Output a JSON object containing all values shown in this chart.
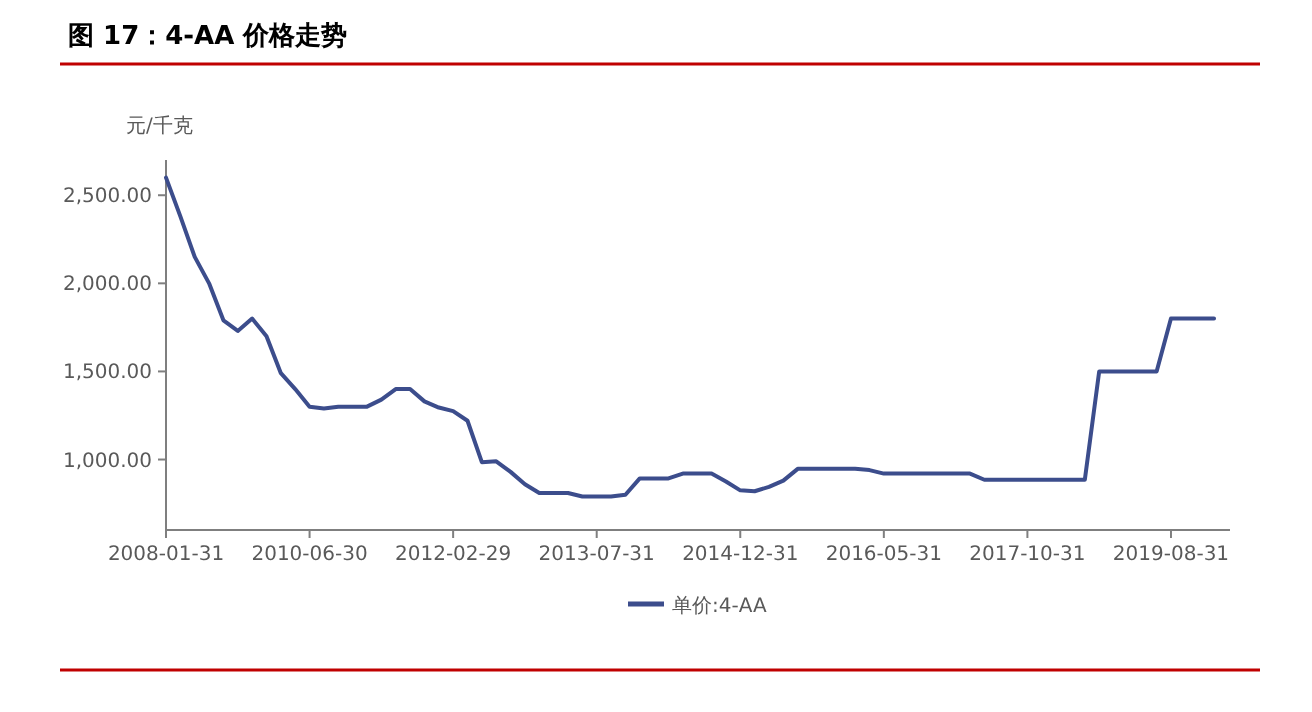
{
  "chart_data": {
    "type": "line",
    "title": "图 17：4-AA 价格走势",
    "ylabel": "元/千克",
    "categories": [
      "2008-01-31",
      null,
      null,
      null,
      null,
      null,
      null,
      null,
      null,
      null,
      "2010-06-30",
      null,
      null,
      null,
      null,
      null,
      null,
      null,
      null,
      null,
      "2012-02-29",
      null,
      null,
      null,
      null,
      null,
      null,
      null,
      null,
      null,
      "2013-07-31",
      null,
      null,
      null,
      null,
      null,
      null,
      null,
      null,
      null,
      "2014-12-31",
      null,
      null,
      null,
      null,
      null,
      null,
      null,
      null,
      null,
      "2016-05-31",
      null,
      null,
      null,
      null,
      null,
      null,
      null,
      null,
      null,
      "2017-10-31",
      null,
      null,
      null,
      null,
      null,
      null,
      null,
      null,
      null,
      "2019-08-31",
      null,
      null,
      null
    ],
    "series": [
      {
        "name": "单价:4-AA",
        "color": "#3c4d8c",
        "values": [
          2600,
          2380,
          2150,
          2000,
          1790,
          1730,
          1800,
          1700,
          1490,
          1400,
          1300,
          1290,
          1300,
          1300,
          1300,
          1340,
          1400,
          1400,
          1330,
          1295,
          1275,
          1220,
          985,
          990,
          930,
          860,
          810,
          810,
          810,
          790,
          790,
          790,
          800,
          893,
          893,
          893,
          920,
          920,
          920,
          875,
          825,
          820,
          845,
          880,
          947,
          947,
          947,
          947,
          947,
          940,
          920,
          920,
          920,
          920,
          920,
          920,
          920,
          885,
          885,
          885,
          885,
          885,
          885,
          885,
          885,
          1500,
          1500,
          1500,
          1500,
          1500,
          1800,
          1800,
          1800,
          1800
        ]
      }
    ],
    "ylim": [
      600,
      2700
    ],
    "yticks": [
      {
        "value": 1000,
        "label": "1,000.00"
      },
      {
        "value": 1500,
        "label": "1,500.00"
      },
      {
        "value": 2000,
        "label": "2,000.00"
      },
      {
        "value": 2500,
        "label": "2,500.00"
      }
    ],
    "legend": "bottom",
    "grid": false
  }
}
